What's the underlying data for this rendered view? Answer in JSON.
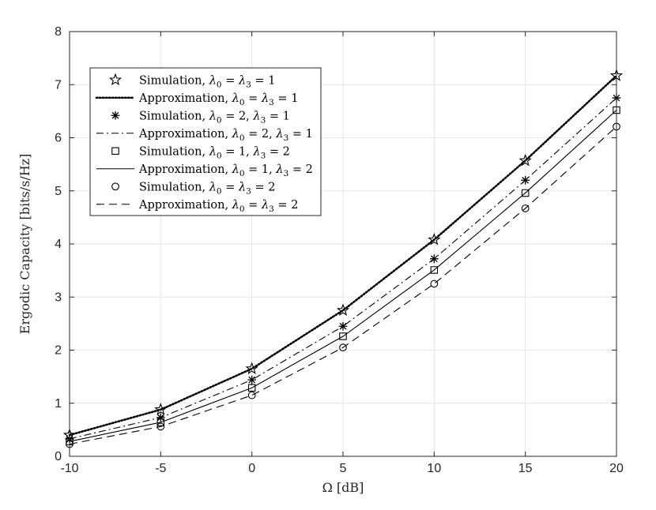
{
  "chart_data": {
    "type": "line",
    "title": "",
    "xlabel": "Ω [dB]",
    "ylabel": "Ergodic Capacity [bits/s/Hz]",
    "xlim": [
      -10,
      20
    ],
    "ylim": [
      0,
      8
    ],
    "xticks": [
      -10,
      -5,
      0,
      5,
      10,
      15,
      20
    ],
    "yticks": [
      0,
      1,
      2,
      3,
      4,
      5,
      6,
      7,
      8
    ],
    "xtick_labels": [
      "-10",
      "-5",
      "0",
      "5",
      "10",
      "15",
      "20"
    ],
    "ytick_labels": [
      "0",
      "1",
      "2",
      "3",
      "4",
      "5",
      "6",
      "7",
      "8"
    ],
    "grid": true,
    "legend_position": "top-left",
    "x": [
      -10,
      -5,
      0,
      5,
      10,
      15,
      20
    ],
    "series": [
      {
        "name": "Simulation, λ0 = λ3 = 1",
        "label_parts": [
          "Simulation, ",
          "λ",
          "0",
          " = ",
          "λ",
          "3",
          " = 1"
        ],
        "kind": "marker",
        "marker": "star",
        "values": [
          0.4,
          0.88,
          1.65,
          2.75,
          4.08,
          5.57,
          7.17
        ]
      },
      {
        "name": "Approximation, λ0 = λ3 = 1",
        "label_parts": [
          "Approximation, ",
          "λ",
          "0",
          " = ",
          "λ",
          "3",
          " = 1"
        ],
        "kind": "line",
        "dash": "dotted",
        "values": [
          0.4,
          0.88,
          1.65,
          2.75,
          4.08,
          5.57,
          7.17
        ]
      },
      {
        "name": "Simulation, λ0 = 2, λ3 = 1",
        "label_parts": [
          "Simulation, ",
          "λ",
          "0",
          " = 2, ",
          "λ",
          "3",
          " = 1"
        ],
        "kind": "marker",
        "marker": "asterisk",
        "values": [
          0.33,
          0.73,
          1.44,
          2.45,
          3.72,
          5.2,
          6.75
        ]
      },
      {
        "name": "Approximation, λ0 = 2, λ3 = 1",
        "label_parts": [
          "Approximation, ",
          "λ",
          "0",
          " = 2, ",
          "λ",
          "3",
          " = 1"
        ],
        "kind": "line",
        "dash": "dashdot",
        "values": [
          0.33,
          0.73,
          1.44,
          2.45,
          3.72,
          5.2,
          6.75
        ]
      },
      {
        "name": "Simulation, λ0 = 1, λ3 = 2",
        "label_parts": [
          "Simulation, ",
          "λ",
          "0",
          " = 1, ",
          "λ",
          "3",
          " = 2"
        ],
        "kind": "marker",
        "marker": "square",
        "values": [
          0.28,
          0.64,
          1.29,
          2.26,
          3.51,
          4.96,
          6.52
        ]
      },
      {
        "name": "Approximation, λ0 = 1, λ3 = 2",
        "label_parts": [
          "Approximation, ",
          "λ",
          "0",
          " = 1, ",
          "λ",
          "3",
          " = 2"
        ],
        "kind": "line",
        "dash": "solid",
        "values": [
          0.28,
          0.64,
          1.29,
          2.26,
          3.51,
          4.96,
          6.52
        ]
      },
      {
        "name": "Simulation, λ0 = λ3 = 2",
        "label_parts": [
          "Simulation, ",
          "λ",
          "0",
          " = ",
          "λ",
          "3",
          " = 2"
        ],
        "kind": "marker",
        "marker": "circle",
        "values": [
          0.23,
          0.56,
          1.15,
          2.05,
          3.25,
          4.67,
          6.21
        ]
      },
      {
        "name": "Approximation, λ0 = λ3 = 2",
        "label_parts": [
          "Approximation, ",
          "λ",
          "0",
          " = ",
          "λ",
          "3",
          " = 2"
        ],
        "kind": "line",
        "dash": "dashed",
        "values": [
          0.23,
          0.56,
          1.15,
          2.05,
          3.25,
          4.67,
          6.21
        ]
      }
    ]
  }
}
